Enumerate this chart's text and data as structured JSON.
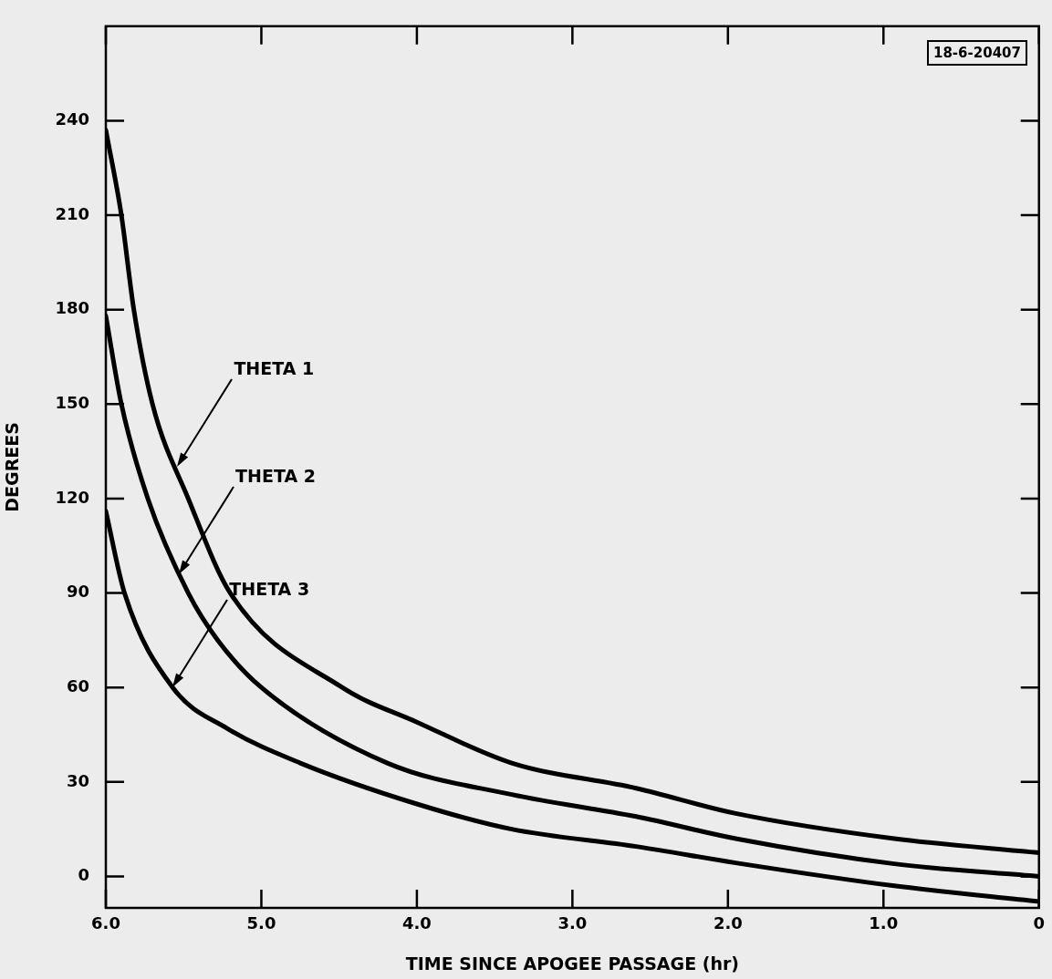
{
  "chart_data": {
    "type": "line",
    "xlabel": "TIME SINCE APOGEE PASSAGE (hr)",
    "ylabel": "DEGREES",
    "xlim": [
      6,
      0
    ],
    "xticks": [
      {
        "value": 6,
        "label": "6.0"
      },
      {
        "value": 5,
        "label": "5.0"
      },
      {
        "value": 4,
        "label": "4.0"
      },
      {
        "value": 3,
        "label": "3.0"
      },
      {
        "value": 2,
        "label": "2.0"
      },
      {
        "value": 1,
        "label": "1.0"
      },
      0
    ],
    "ylim": [
      -10,
      270
    ],
    "yticks": [
      0,
      30,
      60,
      90,
      120,
      150,
      180,
      210,
      240
    ],
    "grid": false,
    "legend": false,
    "marker": "none",
    "line_style": "solid",
    "annotations": [
      "18-6-20407",
      {
        "text": "THETA 1",
        "x": 5.54,
        "y": 130
      },
      {
        "text": "THETA 2",
        "x": 5.53,
        "y": 96
      },
      {
        "text": "THETA 3",
        "x": 5.57,
        "y": 60
      }
    ],
    "series": [
      {
        "color": "#000000",
        "x": [
          6,
          5.9,
          5.82,
          5.7,
          5.47,
          5.2,
          4.48,
          4.0,
          3.39,
          2.59,
          1.95,
          0.93,
          0
        ],
        "values": [
          237,
          210,
          180,
          150,
          120,
          90,
          60,
          49,
          36,
          28,
          20,
          12,
          7.5
        ]
      },
      {
        "color": "#000000",
        "x": [
          6,
          5.9,
          5.73,
          5.47,
          5.28,
          5.0,
          4.19,
          3.39,
          2.59,
          1.95,
          0.93,
          0
        ],
        "values": [
          178,
          150,
          120,
          90,
          75,
          60,
          36,
          26,
          19,
          12,
          4,
          0
        ]
      },
      {
        "color": "#000000",
        "x": [
          6,
          5.88,
          5.57,
          5.22,
          4.75,
          4.0,
          3.39,
          2.59,
          1.95,
          0.93,
          0
        ],
        "values": [
          116,
          90,
          60,
          47,
          36,
          23,
          15,
          9.5,
          4.3,
          -3,
          -8
        ]
      }
    ]
  }
}
